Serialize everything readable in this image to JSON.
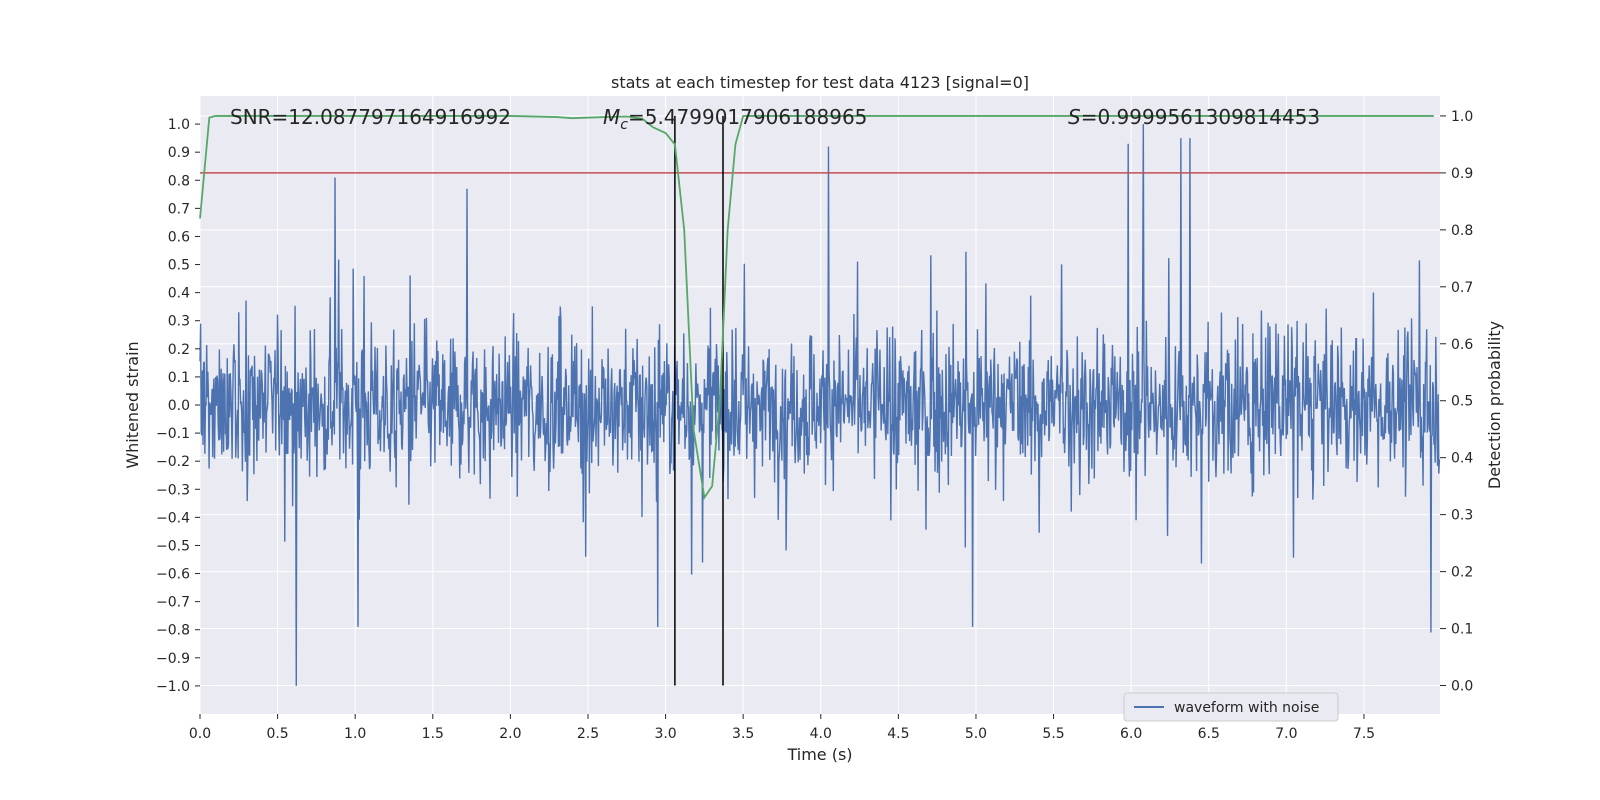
{
  "chart_data": {
    "type": "line",
    "title": "stats at each timestep for test data 4123 [signal=0]",
    "xlabel": "Time (s)",
    "ylabel": "Whitened strain",
    "y2label": "Detection probability",
    "xlim": [
      0.0,
      7.99
    ],
    "ylim": [
      -1.1,
      1.1
    ],
    "y2lim": [
      -0.05,
      1.035
    ],
    "x_ticks": [
      0.0,
      0.5,
      1.0,
      1.5,
      2.0,
      2.5,
      3.0,
      3.5,
      4.0,
      4.5,
      5.0,
      5.5,
      6.0,
      6.5,
      7.0,
      7.5
    ],
    "x_tick_labels": [
      "0.0",
      "0.5",
      "1.0",
      "1.5",
      "2.0",
      "2.5",
      "3.0",
      "3.5",
      "4.0",
      "4.5",
      "5.0",
      "5.5",
      "6.0",
      "6.5",
      "7.0",
      "7.5"
    ],
    "y_ticks": [
      1.0,
      0.9,
      0.8,
      0.7,
      0.6,
      0.5,
      0.4,
      0.3,
      0.2,
      0.1,
      0.0,
      -0.1,
      -0.2,
      -0.3,
      -0.4,
      -0.5,
      -0.6,
      -0.7,
      -0.8,
      -0.9,
      -1.0
    ],
    "y_tick_labels": [
      "1.0",
      "0.9",
      "0.8",
      "0.7",
      "0.6",
      "0.5",
      "0.4",
      "0.3",
      "0.2",
      "0.1",
      "0.0",
      "−0.1",
      "−0.2",
      "−0.3",
      "−0.4",
      "−0.5",
      "−0.6",
      "−0.7",
      "−0.8",
      "−0.9",
      "−1.0"
    ],
    "y2_ticks": [
      1.0,
      0.9,
      0.8,
      0.7,
      0.6,
      0.5,
      0.4,
      0.3,
      0.2,
      0.1,
      0.0
    ],
    "y2_tick_labels": [
      "1.0",
      "0.9",
      "0.8",
      "0.7",
      "0.6",
      "0.5",
      "0.4",
      "0.3",
      "0.2",
      "0.1",
      "0.0"
    ],
    "grid": true,
    "annotations": {
      "snr": "SNR=12.087797164916992",
      "mc_symbol": "M",
      "mc_sub": "c",
      "mc_value": "=5.4799017906188965",
      "s_symbol": "S",
      "s_value": "=0.9999561309814453"
    },
    "threshold_y2": 0.9,
    "vlines_x": [
      3.06,
      3.37
    ],
    "legend": {
      "label": "waveform with noise",
      "placement": "lower-right"
    },
    "series": [
      {
        "name": "waveform with noise",
        "color": "#4c72b0",
        "axis": "left",
        "sample_count": 2048,
        "spike_peaks": [
          {
            "x": 0.62,
            "y": -1.0
          },
          {
            "x": 0.87,
            "y": 0.81
          },
          {
            "x": 1.02,
            "y": -0.79
          },
          {
            "x": 1.72,
            "y": 0.77
          },
          {
            "x": 2.95,
            "y": -0.79
          },
          {
            "x": 4.05,
            "y": 0.92
          },
          {
            "x": 4.98,
            "y": -0.79
          },
          {
            "x": 5.98,
            "y": 0.93
          },
          {
            "x": 6.08,
            "y": 1.0
          },
          {
            "x": 6.32,
            "y": 0.95
          },
          {
            "x": 6.38,
            "y": 0.95
          },
          {
            "x": 7.93,
            "y": -0.81
          }
        ]
      },
      {
        "name": "detection probability",
        "color": "#55a868",
        "axis": "right",
        "x": [
          0.0,
          0.06,
          0.1,
          0.2,
          0.5,
          1.0,
          1.5,
          2.0,
          2.3,
          2.4,
          2.6,
          2.75,
          2.85,
          2.92,
          3.0,
          3.06,
          3.12,
          3.18,
          3.25,
          3.3,
          3.35,
          3.4,
          3.45,
          3.5,
          3.6,
          4.0,
          5.0,
          6.0,
          7.0,
          7.95
        ],
        "y": [
          0.82,
          0.997,
          1.0,
          1.0,
          1.0,
          1.0,
          1.0,
          1.0,
          0.998,
          0.996,
          0.998,
          0.999,
          0.995,
          0.98,
          0.97,
          0.95,
          0.8,
          0.45,
          0.33,
          0.35,
          0.5,
          0.8,
          0.95,
          1.0,
          1.0,
          1.0,
          1.0,
          1.0,
          1.0,
          1.0
        ]
      },
      {
        "name": "threshold",
        "color": "#c44e52",
        "axis": "right",
        "y": 0.9
      }
    ]
  }
}
